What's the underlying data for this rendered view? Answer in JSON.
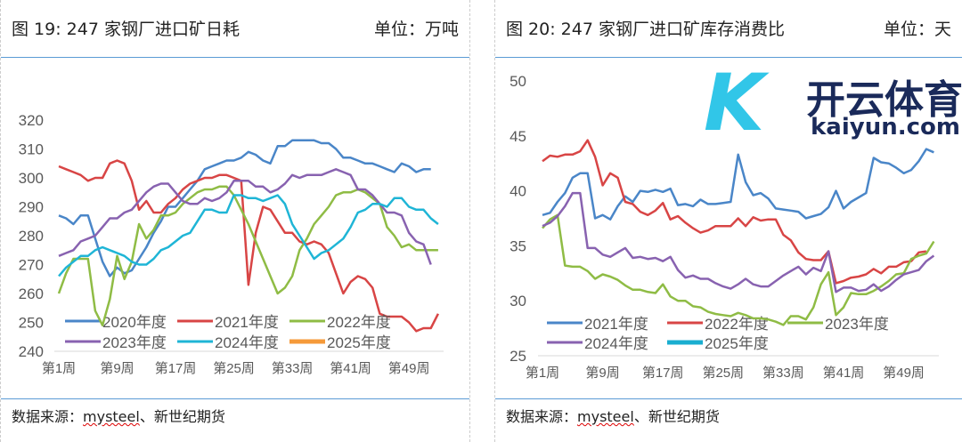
{
  "chart_data": [
    {
      "type": "line",
      "title": "图 19:  247 家钢厂进口矿日耗",
      "unit": "单位：万吨",
      "xtick_labels": [
        "第1周",
        "第9周",
        "第17周",
        "第25周",
        "第33周",
        "第41周",
        "第49周"
      ],
      "xtick_weeks": [
        1,
        9,
        17,
        25,
        33,
        41,
        49
      ],
      "ylim": [
        240,
        320
      ],
      "yticks": [
        240,
        250,
        260,
        270,
        280,
        290,
        300,
        310,
        320
      ],
      "legend": "bottom-inside",
      "series": [
        {
          "name": "2020年度",
          "color": "#4a86c8",
          "values": [
            287,
            286,
            284,
            287,
            287,
            279,
            271,
            266,
            269,
            267,
            268,
            272,
            276,
            281,
            285,
            290,
            290,
            293,
            296,
            299,
            303,
            304,
            305,
            306,
            306,
            307,
            309,
            308,
            306,
            305,
            311,
            311,
            313,
            313,
            313,
            313,
            312,
            312,
            310,
            307,
            307,
            306,
            305,
            305,
            304,
            303,
            302,
            305,
            304,
            302,
            303,
            303
          ]
        },
        {
          "name": "2021年度",
          "color": "#d84545",
          "values": [
            304,
            303,
            302,
            301,
            299,
            300,
            300,
            305,
            306,
            305,
            299,
            289,
            292,
            288,
            288,
            291,
            293,
            296,
            298,
            299,
            300,
            300,
            301,
            301,
            300,
            299,
            263,
            281,
            290,
            289,
            285,
            281,
            281,
            278,
            277,
            278,
            277,
            274,
            267,
            260,
            264,
            266,
            265,
            262,
            253,
            252,
            252,
            252,
            250,
            247,
            248,
            248,
            253
          ]
        },
        {
          "name": "2022年度",
          "color": "#8fbc45",
          "values": [
            260,
            267,
            272,
            272,
            272,
            254,
            249,
            258,
            273,
            265,
            271,
            284,
            279,
            282,
            287,
            287,
            288,
            291,
            293,
            295,
            296,
            296,
            297,
            297,
            294,
            289,
            284,
            278,
            272,
            266,
            260,
            262,
            266,
            275,
            279,
            284,
            287,
            290,
            294,
            295,
            295,
            296,
            295,
            293,
            291,
            283,
            280,
            276,
            277,
            275,
            275,
            275,
            275
          ]
        },
        {
          "name": "2023年度",
          "color": "#8862b0",
          "values": [
            273,
            274,
            275,
            278,
            279,
            280,
            283,
            286,
            286,
            288,
            289,
            292,
            295,
            297,
            298,
            298,
            295,
            292,
            291,
            291,
            293,
            292,
            293,
            295,
            299,
            299,
            299,
            297,
            297,
            295,
            296,
            298,
            301,
            300,
            301,
            301,
            301,
            302,
            303,
            302,
            301,
            296,
            296,
            294,
            291,
            288,
            288,
            287,
            281,
            278,
            277,
            270
          ]
        },
        {
          "name": "2024年度",
          "color": "#1fb5d6",
          "values": [
            266,
            269,
            271,
            273,
            273,
            275,
            276,
            275,
            274,
            273,
            271,
            270,
            270,
            272,
            275,
            276,
            278,
            280,
            281,
            285,
            289,
            289,
            288,
            288,
            294,
            294,
            293,
            293,
            292,
            293,
            294,
            291,
            284,
            280,
            276,
            272,
            274,
            275,
            277,
            279,
            283,
            288,
            289,
            291,
            291,
            290,
            293,
            293,
            290,
            289,
            289,
            286,
            284
          ]
        },
        {
          "name": "2025年度",
          "color": "#f59a3a",
          "values": []
        }
      ]
    },
    {
      "type": "line",
      "title": "图 20:  247 家钢厂进口矿库存消费比",
      "unit": "单位：天",
      "xtick_labels": [
        "第1周",
        "第9周",
        "第17周",
        "第25周",
        "第33周",
        "第41周",
        "第49周"
      ],
      "xtick_weeks": [
        1,
        9,
        17,
        25,
        33,
        41,
        49
      ],
      "ylim": [
        25,
        50
      ],
      "yticks": [
        25,
        30,
        35,
        40,
        45,
        50
      ],
      "legend": "bottom-inside",
      "series": [
        {
          "name": "2021年度",
          "color": "#4a86c8",
          "values": [
            37.8,
            38,
            39,
            39.8,
            41.2,
            41.6,
            41.6,
            37.5,
            37.8,
            37.4,
            38.6,
            39.5,
            39,
            40,
            39.9,
            40.1,
            39.9,
            40.2,
            38.7,
            38.8,
            38.6,
            39.2,
            38.8,
            38.8,
            38.9,
            39,
            43.3,
            40.8,
            39.6,
            39.8,
            39.3,
            38.4,
            38.3,
            38.2,
            38.1,
            37.5,
            37.7,
            37.9,
            38.5,
            40,
            38.4,
            39,
            39.4,
            39.8,
            43,
            42.6,
            42.5,
            42.1,
            41.6,
            41.9,
            42.7,
            43.8,
            43.5
          ]
        },
        {
          "name": "2022年度",
          "color": "#d84545",
          "values": [
            42.7,
            43.2,
            43.1,
            43.3,
            43.3,
            43.6,
            44.6,
            43.1,
            40.5,
            41.6,
            41.2,
            39,
            38.8,
            38.1,
            37.8,
            38.2,
            38.9,
            37.4,
            37.7,
            37.1,
            36.6,
            36.2,
            36.4,
            36.8,
            36.8,
            36.8,
            37.5,
            36.8,
            37.6,
            37.3,
            37.4,
            37.4,
            36,
            35.5,
            34.4,
            33.8,
            33.7,
            33.7,
            34.5,
            31.6,
            31.8,
            32.1,
            32.2,
            32.4,
            32.9,
            32.5,
            33.1,
            33.1,
            33.5,
            33.6,
            34.4,
            34.5
          ]
        },
        {
          "name": "2023年度",
          "color": "#8fbc45",
          "values": [
            36.6,
            37.4,
            37.8,
            33.2,
            33.1,
            33.1,
            32.7,
            32,
            32.4,
            32.2,
            31.9,
            31.4,
            31,
            31,
            30.8,
            30.7,
            31.5,
            30.4,
            30,
            30,
            29.5,
            29.4,
            29,
            28.8,
            28.7,
            28.6,
            28.9,
            28.7,
            28.4,
            28.4,
            28.3,
            28.1,
            27.8,
            28.6,
            28.6,
            28.3,
            29.4,
            31.5,
            32.6,
            28.7,
            29.4,
            30.7,
            30.6,
            30.6,
            30.9,
            31.3,
            31.8,
            32.4,
            32.5,
            33.8,
            34.1,
            34.3,
            35.4
          ]
        },
        {
          "name": "2024年度",
          "color": "#8862b0",
          "values": [
            36.8,
            37.1,
            37.7,
            38.6,
            39.8,
            39.8,
            34.8,
            34.8,
            34.2,
            34,
            34.4,
            34.8,
            33.9,
            34,
            33.8,
            33.9,
            33.6,
            34,
            32.8,
            32.1,
            32.3,
            32,
            32,
            31.6,
            31.3,
            31.1,
            31.5,
            32,
            31.5,
            31.3,
            31.3,
            31.8,
            32.3,
            32.7,
            33.1,
            32.4,
            33,
            32.7,
            34.5,
            30.8,
            31.2,
            31.2,
            30.9,
            31,
            31.5,
            30.9,
            31.3,
            31.9,
            32.4,
            32.6,
            32.8,
            33.6,
            34.1
          ]
        },
        {
          "name": "2025年度",
          "color": "#1aaed0",
          "values": []
        }
      ]
    }
  ],
  "source_left": {
    "prefix": "数据来源：",
    "brand": "mysteel",
    "suffix": "、新世纪期货"
  },
  "source_right": {
    "prefix": "数据来源：",
    "brand": "mysteel",
    "suffix": "、新世纪期货"
  },
  "watermark": {
    "name": "开云体育",
    "url": "kaiyun.com"
  }
}
